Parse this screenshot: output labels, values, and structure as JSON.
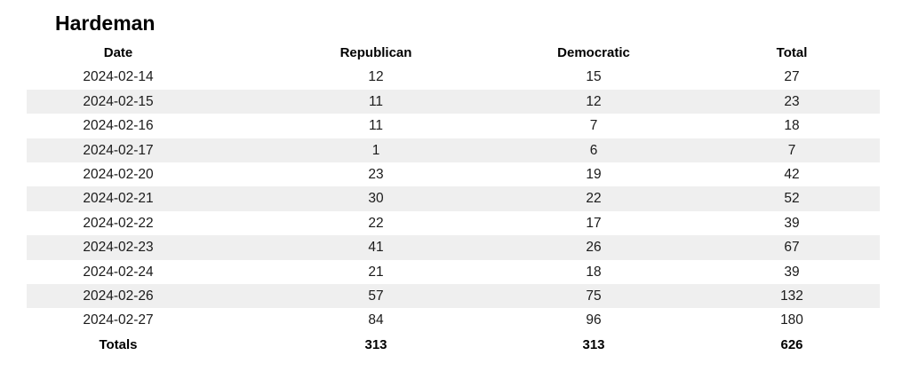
{
  "page": {
    "title": "Hardeman"
  },
  "colors": {
    "background": "#ffffff",
    "stripe": "#efefef",
    "text": "#1a1a1a",
    "bold_text": "#000000"
  },
  "chart_data": {
    "type": "table",
    "title": "Hardeman",
    "columns": [
      "Date",
      "Republican",
      "Democratic",
      "Total"
    ],
    "rows": [
      [
        "2024-02-14",
        12,
        15,
        27
      ],
      [
        "2024-02-15",
        11,
        12,
        23
      ],
      [
        "2024-02-16",
        11,
        7,
        18
      ],
      [
        "2024-02-17",
        1,
        6,
        7
      ],
      [
        "2024-02-20",
        23,
        19,
        42
      ],
      [
        "2024-02-21",
        30,
        22,
        52
      ],
      [
        "2024-02-22",
        22,
        17,
        39
      ],
      [
        "2024-02-23",
        41,
        26,
        67
      ],
      [
        "2024-02-24",
        21,
        18,
        39
      ],
      [
        "2024-02-26",
        57,
        75,
        132
      ],
      [
        "2024-02-27",
        84,
        96,
        180
      ]
    ],
    "totals": [
      "Totals",
      313,
      313,
      626
    ],
    "layout": {
      "striped_rows": [
        1,
        3,
        5,
        7,
        9
      ],
      "grid": "none",
      "column_alignment": "center"
    }
  }
}
